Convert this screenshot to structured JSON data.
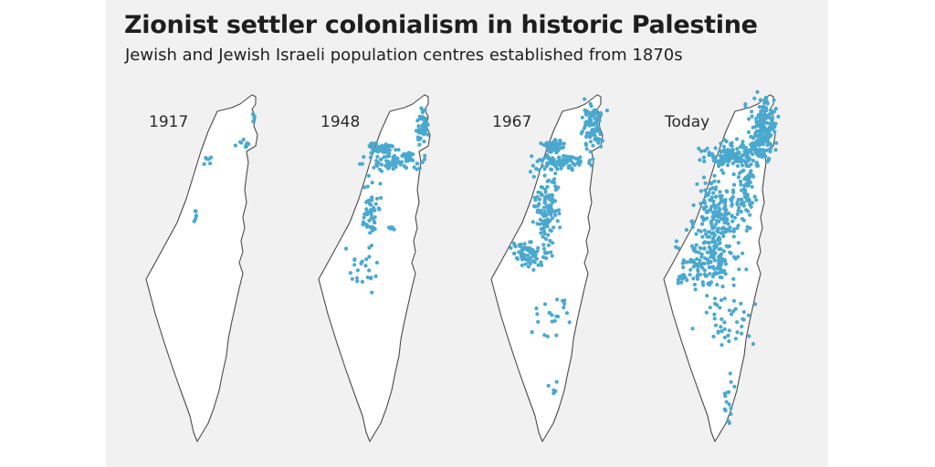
{
  "header": {
    "title": "Zionist settler colonialism in historic Palestine",
    "subtitle": "Jewish and Jewish Israeli population centres established from 1870s"
  },
  "colors": {
    "background_panel": "#f1f1f1",
    "land": "#ffffff",
    "border": "#4a4a4a",
    "settlement_dot": "#4aa8cf",
    "text": "#1e1e1e"
  },
  "maps": [
    {
      "year_label": "1917"
    },
    {
      "year_label": "1948"
    },
    {
      "year_label": "1967"
    },
    {
      "year_label": "Today"
    }
  ]
}
